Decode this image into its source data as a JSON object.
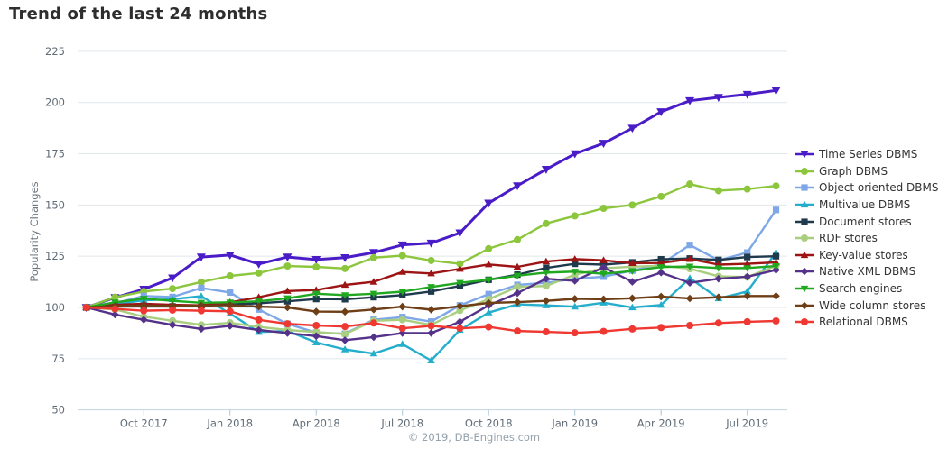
{
  "page": {
    "title": "Trend of the last 24 months"
  },
  "footer": {
    "credit": "© 2019, DB-Engines.com"
  },
  "chart_data": {
    "type": "line",
    "title": "Trend of the last 24 months",
    "xlabel": "",
    "ylabel": "Popularity Changes",
    "ylim": [
      50,
      225
    ],
    "y_ticks": [
      50,
      75,
      100,
      125,
      150,
      175,
      200,
      225
    ],
    "grid": "horizontal",
    "legend_position": "right",
    "x": [
      "Aug 2017",
      "Sep 2017",
      "Oct 2017",
      "Nov 2017",
      "Dec 2017",
      "Jan 2018",
      "Feb 2018",
      "Mar 2018",
      "Apr 2018",
      "May 2018",
      "Jun 2018",
      "Jul 2018",
      "Aug 2018",
      "Sep 2018",
      "Oct 2018",
      "Nov 2018",
      "Dec 2018",
      "Jan 2019",
      "Feb 2019",
      "Mar 2019",
      "Apr 2019",
      "May 2019",
      "Jun 2019",
      "Jul 2019",
      "Aug 2019"
    ],
    "x_axis_tick_labels": [
      "Oct 2017",
      "Jan 2018",
      "Apr 2018",
      "Jul 2018",
      "Oct 2018",
      "Jan 2019",
      "Apr 2019",
      "Jul 2019"
    ],
    "x_axis_tick_month_index": [
      2,
      5,
      8,
      11,
      14,
      17,
      20,
      23
    ],
    "series": [
      {
        "name": "Time Series DBMS",
        "color": "#4a1cc8",
        "marker": "triangle-down",
        "values": [
          100,
          104.8,
          108.9,
          114.4,
          124.6,
          125.6,
          121.2,
          124.6,
          123.4,
          124.3,
          126.8,
          130.5,
          131.4,
          136.4,
          150.9,
          159.4,
          167.4,
          175.0,
          180.1,
          187.5,
          195.5,
          200.9,
          202.5,
          204.0,
          205.9
        ]
      },
      {
        "name": "Graph DBMS",
        "color": "#8cc63c",
        "marker": "circle",
        "values": [
          100,
          105.0,
          107.8,
          109.2,
          112.4,
          115.4,
          116.8,
          120.2,
          119.8,
          119.0,
          124.3,
          125.3,
          122.9,
          121.3,
          128.7,
          133.1,
          141.0,
          144.7,
          148.4,
          150.0,
          154.2,
          160.2,
          157.0,
          157.8,
          159.3
        ]
      },
      {
        "name": "Object oriented DBMS",
        "color": "#7da7e7",
        "marker": "square",
        "values": [
          100,
          102.0,
          105.6,
          105.1,
          109.5,
          107.3,
          99.0,
          92.0,
          87.7,
          87.2,
          94.0,
          95.3,
          93.1,
          101.0,
          106.5,
          111.0,
          112.0,
          114.0,
          115.0,
          118.0,
          121.0,
          130.5,
          123.0,
          126.8,
          147.6
        ]
      },
      {
        "name": "Multivalue DBMS",
        "color": "#25aecb",
        "marker": "triangle-up",
        "values": [
          100,
          101.5,
          103.5,
          104.0,
          105.5,
          97.0,
          88.0,
          88.5,
          82.9,
          79.5,
          77.5,
          82.1,
          74.1,
          89.0,
          97.5,
          101.5,
          101.0,
          100.4,
          102.3,
          100.0,
          101.2,
          114.3,
          104.4,
          107.8,
          126.8
        ]
      },
      {
        "name": "Document stores",
        "color": "#1f3a4c",
        "marker": "square",
        "values": [
          100,
          100.5,
          100.5,
          100.5,
          101.0,
          101.5,
          102.0,
          103.0,
          104.1,
          104.0,
          105.0,
          106.0,
          107.8,
          110.5,
          113.5,
          116.0,
          119.3,
          121.3,
          120.9,
          122.0,
          123.5,
          123.9,
          123.2,
          124.6,
          125.0
        ]
      },
      {
        "name": "RDF stores",
        "color": "#a9ce7f",
        "marker": "circle",
        "values": [
          100,
          99.0,
          95.5,
          93.5,
          91.5,
          92.5,
          90.5,
          89.0,
          88.0,
          87.0,
          93.5,
          94.0,
          91.5,
          98.5,
          104.0,
          110.0,
          110.5,
          116.0,
          119.1,
          119.9,
          120.4,
          118.9,
          115.2,
          114.8,
          120.3
        ]
      },
      {
        "name": "Key-value stores",
        "color": "#9c1414",
        "marker": "triangle-up",
        "values": [
          100,
          101.3,
          101.8,
          101.3,
          101.0,
          102.5,
          105.0,
          108.0,
          108.5,
          111.0,
          112.5,
          117.3,
          116.6,
          118.8,
          121.0,
          119.8,
          122.4,
          123.6,
          123.0,
          121.6,
          121.7,
          123.6,
          120.9,
          121.3,
          122.0
        ]
      },
      {
        "name": "Native XML DBMS",
        "color": "#55328a",
        "marker": "diamond",
        "values": [
          100,
          96.5,
          94.0,
          91.5,
          89.5,
          91.0,
          89.0,
          87.5,
          86.0,
          84.0,
          85.5,
          87.5,
          87.5,
          93.0,
          101.0,
          107.0,
          114.0,
          113.0,
          119.5,
          112.5,
          117.0,
          112.0,
          114.0,
          115.0,
          118.3
        ]
      },
      {
        "name": "Search engines",
        "color": "#21a821",
        "marker": "triangle-down",
        "values": [
          100,
          102.5,
          104.3,
          103.2,
          102.3,
          102.5,
          103.0,
          104.5,
          106.7,
          106.0,
          106.7,
          107.7,
          110.0,
          112.0,
          113.5,
          115.5,
          117.0,
          117.5,
          116.4,
          117.8,
          119.7,
          120.0,
          119.2,
          119.2,
          120.2
        ]
      },
      {
        "name": "Wide column stores",
        "color": "#6e3e17",
        "marker": "diamond",
        "values": [
          100,
          100.7,
          100.9,
          100.7,
          100.9,
          101.1,
          100.4,
          100.0,
          98.0,
          97.9,
          99.0,
          100.4,
          98.9,
          100.6,
          102.2,
          102.6,
          103.2,
          104.2,
          104.0,
          104.5,
          105.3,
          104.4,
          105.0,
          105.6,
          105.6
        ]
      },
      {
        "name": "Relational DBMS",
        "color": "#ef3832",
        "marker": "circle",
        "values": [
          100,
          99.3,
          98.4,
          98.7,
          98.4,
          98.1,
          93.9,
          92.0,
          91.2,
          90.7,
          92.4,
          89.8,
          91.0,
          89.8,
          90.5,
          88.5,
          88.1,
          87.6,
          88.3,
          89.5,
          90.2,
          91.2,
          92.4,
          93.0,
          93.4
        ]
      }
    ]
  }
}
